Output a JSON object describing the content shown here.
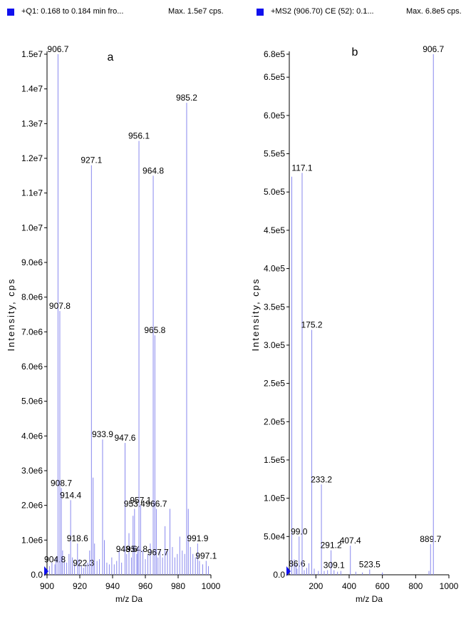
{
  "headers": {
    "left": {
      "label": "+Q1: 0.168 to 0.184 min fro...",
      "max": "Max. 1.5e7 cps."
    },
    "right": {
      "label": "+MS2 (906.70) CE (52): 0.1...",
      "max": "Max. 6.8e5 cps."
    }
  },
  "colors": {
    "peak": "#8888ee",
    "marker": "#1010ee",
    "axis": "#000000"
  },
  "chart_data": [
    {
      "type": "bar",
      "panel_label": "a",
      "xlabel": "m/z Da",
      "ylabel": "Intensity, cps",
      "xlim": [
        900,
        1000
      ],
      "ylim": [
        0,
        15000000
      ],
      "x_ticks": [
        900,
        920,
        940,
        960,
        980,
        1000
      ],
      "x_tick_labels": [
        "900",
        "920",
        "940",
        "960",
        "980",
        "1000"
      ],
      "y_ticks": [
        0,
        1000000,
        2000000,
        3000000,
        4000000,
        5000000,
        6000000,
        7000000,
        8000000,
        9000000,
        10000000,
        11000000,
        12000000,
        13000000,
        14000000,
        15000000
      ],
      "y_tick_labels": [
        "0.0",
        "1.0e6",
        "2.0e6",
        "3.0e6",
        "4.0e6",
        "5.0e6",
        "6.0e6",
        "7.0e6",
        "8.0e6",
        "9.0e6",
        "1.0e7",
        "1.1e7",
        "1.2e7",
        "1.3e7",
        "1.4e7",
        "1.5e7"
      ],
      "peaks": [
        {
          "x": 904.8,
          "y": 300000,
          "label": "904.8"
        },
        {
          "x": 906.7,
          "y": 15000000,
          "label": "906.7"
        },
        {
          "x": 907.8,
          "y": 7600000,
          "label": "907.8"
        },
        {
          "x": 908.7,
          "y": 2500000,
          "label": "908.7"
        },
        {
          "x": 914.4,
          "y": 2150000,
          "label": "914.4"
        },
        {
          "x": 918.6,
          "y": 900000,
          "label": "918.6"
        },
        {
          "x": 922.3,
          "y": 200000,
          "label": "922.3"
        },
        {
          "x": 927.1,
          "y": 11800000,
          "label": "927.1"
        },
        {
          "x": 933.9,
          "y": 3900000,
          "label": "933.9"
        },
        {
          "x": 947.6,
          "y": 3800000,
          "label": "947.6"
        },
        {
          "x": 948.6,
          "y": 600000,
          "label": "948.6"
        },
        {
          "x": 953.4,
          "y": 1900000,
          "label": "953.4"
        },
        {
          "x": 954.8,
          "y": 600000,
          "label": "954.8"
        },
        {
          "x": 956.1,
          "y": 12500000,
          "label": "956.1"
        },
        {
          "x": 957.1,
          "y": 2000000,
          "label": "957.1"
        },
        {
          "x": 964.8,
          "y": 11500000,
          "label": "964.8"
        },
        {
          "x": 965.8,
          "y": 6900000,
          "label": "965.8"
        },
        {
          "x": 966.7,
          "y": 1900000,
          "label": "966.7"
        },
        {
          "x": 967.7,
          "y": 500000,
          "label": "967.7"
        },
        {
          "x": 985.2,
          "y": 13600000,
          "label": "985.2"
        },
        {
          "x": 991.9,
          "y": 900000,
          "label": "991.9"
        },
        {
          "x": 997.1,
          "y": 400000,
          "label": "997.1"
        }
      ],
      "minor_peaks": [
        {
          "x": 901.5,
          "y": 250000
        },
        {
          "x": 903.0,
          "y": 350000
        },
        {
          "x": 905.5,
          "y": 500000
        },
        {
          "x": 909.5,
          "y": 700000
        },
        {
          "x": 910.6,
          "y": 400000
        },
        {
          "x": 912.0,
          "y": 350000
        },
        {
          "x": 913.4,
          "y": 600000
        },
        {
          "x": 915.5,
          "y": 500000
        },
        {
          "x": 916.8,
          "y": 300000
        },
        {
          "x": 919.6,
          "y": 450000
        },
        {
          "x": 921.0,
          "y": 250000
        },
        {
          "x": 923.5,
          "y": 300000
        },
        {
          "x": 924.8,
          "y": 350000
        },
        {
          "x": 926.0,
          "y": 700000
        },
        {
          "x": 928.1,
          "y": 2800000
        },
        {
          "x": 929.0,
          "y": 900000
        },
        {
          "x": 930.5,
          "y": 400000
        },
        {
          "x": 932.0,
          "y": 450000
        },
        {
          "x": 935.0,
          "y": 1000000
        },
        {
          "x": 936.5,
          "y": 350000
        },
        {
          "x": 938.0,
          "y": 300000
        },
        {
          "x": 939.5,
          "y": 500000
        },
        {
          "x": 941.0,
          "y": 300000
        },
        {
          "x": 942.5,
          "y": 400000
        },
        {
          "x": 944.0,
          "y": 700000
        },
        {
          "x": 945.5,
          "y": 350000
        },
        {
          "x": 950.0,
          "y": 1200000
        },
        {
          "x": 951.5,
          "y": 500000
        },
        {
          "x": 952.5,
          "y": 1700000
        },
        {
          "x": 955.3,
          "y": 800000
        },
        {
          "x": 958.5,
          "y": 700000
        },
        {
          "x": 960.0,
          "y": 450000
        },
        {
          "x": 961.5,
          "y": 600000
        },
        {
          "x": 963.0,
          "y": 900000
        },
        {
          "x": 969.0,
          "y": 700000
        },
        {
          "x": 970.5,
          "y": 500000
        },
        {
          "x": 972.0,
          "y": 1400000
        },
        {
          "x": 973.5,
          "y": 700000
        },
        {
          "x": 975.0,
          "y": 1900000
        },
        {
          "x": 976.5,
          "y": 800000
        },
        {
          "x": 978.0,
          "y": 500000
        },
        {
          "x": 979.5,
          "y": 600000
        },
        {
          "x": 981.0,
          "y": 1100000
        },
        {
          "x": 982.5,
          "y": 700000
        },
        {
          "x": 984.0,
          "y": 600000
        },
        {
          "x": 986.2,
          "y": 1900000
        },
        {
          "x": 987.5,
          "y": 800000
        },
        {
          "x": 989.0,
          "y": 600000
        },
        {
          "x": 990.5,
          "y": 500000
        },
        {
          "x": 993.0,
          "y": 400000
        },
        {
          "x": 995.0,
          "y": 300000
        },
        {
          "x": 998.5,
          "y": 250000
        }
      ]
    },
    {
      "type": "bar",
      "panel_label": "b",
      "xlabel": "m/z Da",
      "ylabel": "Intensity, cps",
      "xlim": [
        40,
        1000
      ],
      "ylim": [
        0,
        680000
      ],
      "x_ticks": [
        200,
        400,
        600,
        800,
        1000
      ],
      "x_tick_labels": [
        "200",
        "400",
        "600",
        "800",
        "1000"
      ],
      "y_ticks": [
        0,
        50000,
        100000,
        150000,
        200000,
        250000,
        300000,
        350000,
        400000,
        450000,
        500000,
        550000,
        600000,
        650000,
        680000
      ],
      "y_tick_labels": [
        "0.0",
        "5.0e4",
        "1.0e5",
        "1.5e5",
        "2.0e5",
        "2.5e5",
        "3.0e5",
        "3.5e5",
        "4.0e5",
        "4.5e5",
        "5.0e5",
        "5.5e5",
        "6.0e5",
        "6.5e5",
        "6.8e5"
      ],
      "peaks": [
        {
          "x": 86.6,
          "y": 8000,
          "label": "86.6"
        },
        {
          "x": 99.0,
          "y": 50000,
          "label": "99.0"
        },
        {
          "x": 117.1,
          "y": 525000,
          "label": "117.1"
        },
        {
          "x": 175.2,
          "y": 320000,
          "label": "175.2"
        },
        {
          "x": 233.2,
          "y": 118000,
          "label": "233.2"
        },
        {
          "x": 291.2,
          "y": 32000,
          "label": "291.2"
        },
        {
          "x": 309.1,
          "y": 6000,
          "label": "309.1"
        },
        {
          "x": 407.4,
          "y": 38000,
          "label": "407.4"
        },
        {
          "x": 523.5,
          "y": 7000,
          "label": "523.5"
        },
        {
          "x": 889.7,
          "y": 40000,
          "label": "889.7"
        },
        {
          "x": 906.7,
          "y": 680000,
          "label": "906.7"
        }
      ],
      "minor_peaks": [
        {
          "x": 55.0,
          "y": 520000
        },
        {
          "x": 70.0,
          "y": 20000
        },
        {
          "x": 80.0,
          "y": 15000
        },
        {
          "x": 130.0,
          "y": 6000
        },
        {
          "x": 145.0,
          "y": 9000
        },
        {
          "x": 158.0,
          "y": 15000
        },
        {
          "x": 190.0,
          "y": 8000
        },
        {
          "x": 215.0,
          "y": 5000
        },
        {
          "x": 250.0,
          "y": 5000
        },
        {
          "x": 270.0,
          "y": 6000
        },
        {
          "x": 330.0,
          "y": 4000
        },
        {
          "x": 350.0,
          "y": 5000
        },
        {
          "x": 440.0,
          "y": 4000
        },
        {
          "x": 480.0,
          "y": 3000
        },
        {
          "x": 600.0,
          "y": 3000
        },
        {
          "x": 880.0,
          "y": 5000
        }
      ]
    }
  ]
}
